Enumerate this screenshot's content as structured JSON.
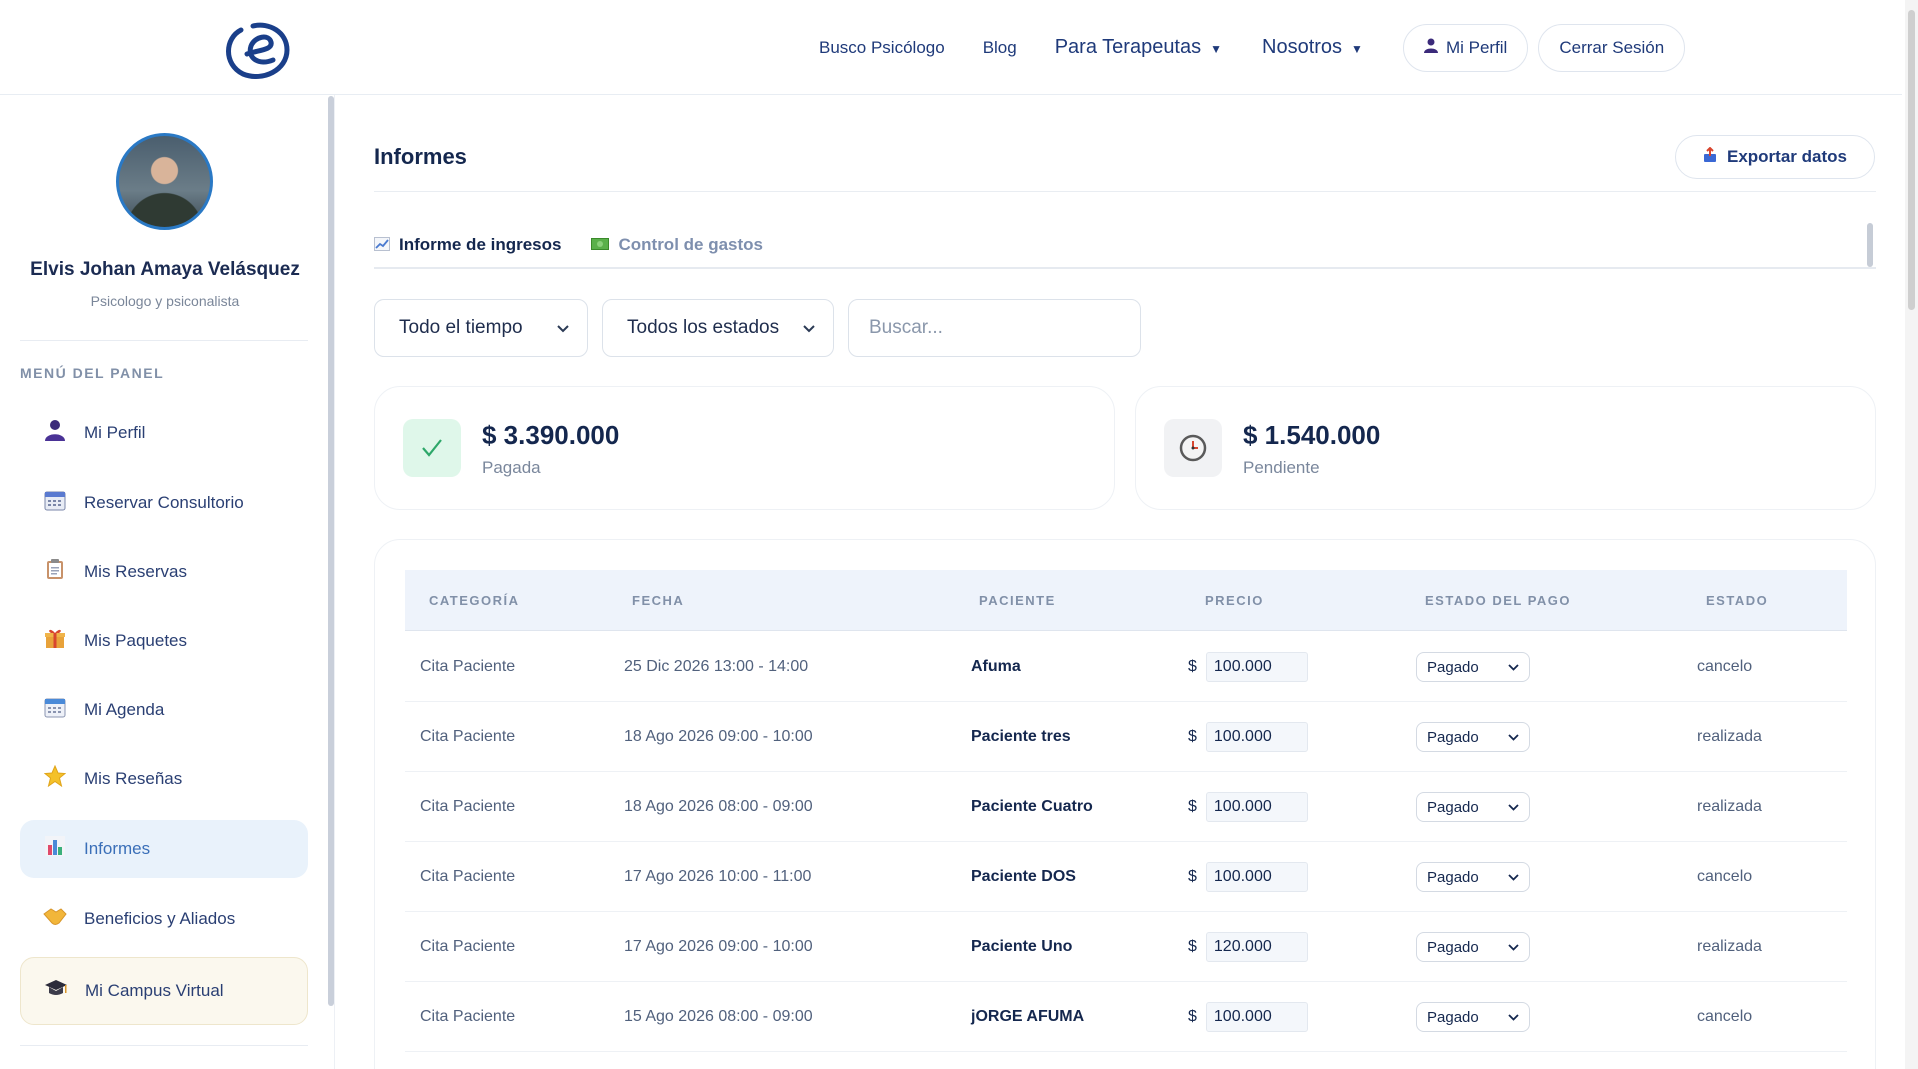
{
  "header": {
    "nav": {
      "busco": "Busco Psicólogo",
      "blog": "Blog",
      "terapeutas": "Para Terapeutas",
      "nosotros": "Nosotros",
      "mi_perfil": "Mi Perfil",
      "cerrar": "Cerrar Sesión"
    }
  },
  "sidebar": {
    "name": "Elvis Johan Amaya Velásquez",
    "role": "Psicologo y psiconalista",
    "menu_title": "MENÚ DEL PANEL",
    "items": [
      {
        "label": "Mi Perfil",
        "icon": "person-icon"
      },
      {
        "label": "Reservar Consultorio",
        "icon": "calendar-icon"
      },
      {
        "label": "Mis Reservas",
        "icon": "clipboard-icon"
      },
      {
        "label": "Mis Paquetes",
        "icon": "gift-icon"
      },
      {
        "label": "Mi Agenda",
        "icon": "agenda-icon"
      },
      {
        "label": "Mis Reseñas",
        "icon": "star-icon"
      },
      {
        "label": "Informes",
        "icon": "bar-chart-icon",
        "active": true
      },
      {
        "label": "Beneficios y Aliados",
        "icon": "handshake-icon"
      },
      {
        "label": "Mi Campus Virtual",
        "icon": "graduation-cap-icon"
      }
    ]
  },
  "main": {
    "title": "Informes",
    "export_label": "Exportar datos",
    "tabs": [
      {
        "label": "Informe de ingresos",
        "icon": "chart-up-icon",
        "active": true
      },
      {
        "label": "Control de gastos",
        "icon": "money-icon",
        "active": false
      }
    ],
    "filters": {
      "period": "Todo el tiempo",
      "status": "Todos los estados",
      "search_placeholder": "Buscar..."
    },
    "stats": [
      {
        "amount": "$ 3.390.000",
        "label": "Pagada",
        "icon": "check-icon"
      },
      {
        "amount": "$ 1.540.000",
        "label": "Pendiente",
        "icon": "clock-icon"
      }
    ],
    "table": {
      "headers": [
        "CATEGORÍA",
        "FECHA",
        "PACIENTE",
        "PRECIO",
        "ESTADO DEL PAGO",
        "ESTADO"
      ],
      "currency": "$",
      "rows": [
        {
          "categoria": "Cita Paciente",
          "fecha": "25 Dic 2026 13:00 - 14:00",
          "paciente": "Afuma",
          "precio": "100.000",
          "pago": "Pagado",
          "estado": "cancelo"
        },
        {
          "categoria": "Cita Paciente",
          "fecha": "18 Ago 2026 09:00 - 10:00",
          "paciente": "Paciente tres",
          "precio": "100.000",
          "pago": "Pagado",
          "estado": "realizada"
        },
        {
          "categoria": "Cita Paciente",
          "fecha": "18 Ago 2026 08:00 - 09:00",
          "paciente": "Paciente Cuatro",
          "precio": "100.000",
          "pago": "Pagado",
          "estado": "realizada"
        },
        {
          "categoria": "Cita Paciente",
          "fecha": "17 Ago 2026 10:00 - 11:00",
          "paciente": "Paciente DOS",
          "precio": "100.000",
          "pago": "Pagado",
          "estado": "cancelo"
        },
        {
          "categoria": "Cita Paciente",
          "fecha": "17 Ago 2026 09:00 - 10:00",
          "paciente": "Paciente Uno",
          "precio": "120.000",
          "pago": "Pagado",
          "estado": "realizada"
        },
        {
          "categoria": "Cita Paciente",
          "fecha": "15 Ago 2026 08:00 - 09:00",
          "paciente": "jORGE AFUMA",
          "precio": "100.000",
          "pago": "Pagado",
          "estado": "cancelo"
        }
      ]
    }
  },
  "colors": {
    "brand": "#1f3a7a",
    "active_bg": "#e9f2fb",
    "paid_green": "#dff7ea",
    "pending_gray": "#f1f2f4"
  }
}
